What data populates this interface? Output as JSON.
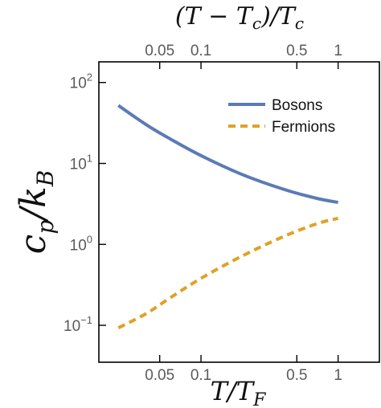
{
  "chart_data": {
    "type": "line",
    "xlabel": "T/T_F",
    "x2label": "(T − T_c)/T_c",
    "ylabel": "c_p/k_B",
    "xscale": "log",
    "yscale": "log",
    "xlim": [
      0.018,
      2.0
    ],
    "ylim": [
      0.035,
      180
    ],
    "x_ticks": [
      {
        "value": 0.05,
        "label": "0.05"
      },
      {
        "value": 0.1,
        "label": "0.1"
      },
      {
        "value": 0.5,
        "label": "0.5"
      },
      {
        "value": 1,
        "label": "1"
      }
    ],
    "x2_ticks": [
      {
        "value": 0.05,
        "label": "0.05"
      },
      {
        "value": 0.1,
        "label": "0.1"
      },
      {
        "value": 0.5,
        "label": "0.5"
      },
      {
        "value": 1,
        "label": "1"
      }
    ],
    "y_ticks": [
      {
        "value": 0.1,
        "base": "10",
        "exp": "−1"
      },
      {
        "value": 1,
        "base": "10",
        "exp": "0"
      },
      {
        "value": 10,
        "base": "10",
        "exp": "1"
      },
      {
        "value": 100,
        "base": "10",
        "exp": "2"
      }
    ],
    "legend_position": "top-right",
    "series": [
      {
        "name": "Bosons",
        "color": "#5b7bb5",
        "dash": "solid",
        "points": [
          [
            0.025,
            52
          ],
          [
            0.04,
            30
          ],
          [
            0.06,
            20
          ],
          [
            0.1,
            12.5
          ],
          [
            0.2,
            7.3
          ],
          [
            0.4,
            4.8
          ],
          [
            0.7,
            3.7
          ],
          [
            1.0,
            3.3
          ]
        ]
      },
      {
        "name": "Fermions",
        "color": "#e0a126",
        "dash": "dashed",
        "points": [
          [
            0.025,
            0.093
          ],
          [
            0.04,
            0.14
          ],
          [
            0.06,
            0.22
          ],
          [
            0.1,
            0.38
          ],
          [
            0.2,
            0.72
          ],
          [
            0.4,
            1.25
          ],
          [
            0.7,
            1.8
          ],
          [
            1.0,
            2.1
          ]
        ]
      }
    ]
  }
}
